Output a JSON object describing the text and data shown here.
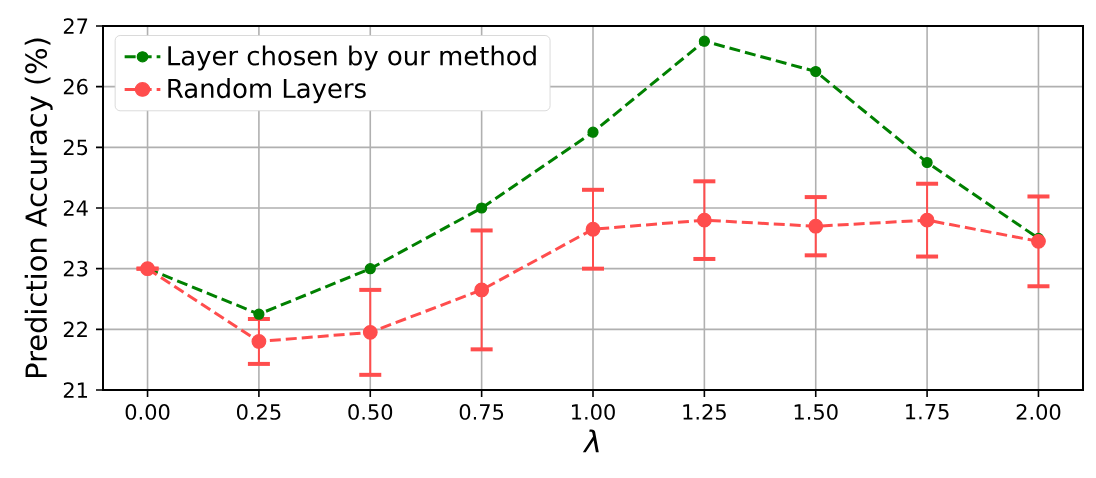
{
  "chart_data": {
    "type": "line",
    "xlabel": "λ",
    "ylabel": "Prediction Accuracy (%)",
    "x": [
      0,
      0.25,
      0.5,
      0.75,
      1.0,
      1.25,
      1.5,
      1.75,
      2.0
    ],
    "xlim": [
      -0.1,
      2.1
    ],
    "xticks": [
      {
        "value": 0,
        "label": "0.00"
      },
      {
        "value": 0.25,
        "label": "0.25"
      },
      {
        "value": 0.5,
        "label": "0.50"
      },
      {
        "value": 0.75,
        "label": "0.75"
      },
      {
        "value": 1.0,
        "label": "1.00"
      },
      {
        "value": 1.25,
        "label": "1.25"
      },
      {
        "value": 1.5,
        "label": "1.50"
      },
      {
        "value": 1.75,
        "label": "1.75"
      },
      {
        "value": 2.0,
        "label": "2.00"
      }
    ],
    "ylim": [
      21,
      27
    ],
    "yticks": [
      21,
      22,
      23,
      24,
      25,
      26,
      27
    ],
    "grid": true,
    "legend": "top left",
    "marker": "circle",
    "line_style": "dashed",
    "series": [
      {
        "name": "Layer chosen by our method",
        "color": "#008000",
        "values": [
          23.0,
          22.25,
          23.0,
          24.0,
          25.25,
          26.75,
          26.25,
          24.75,
          23.5
        ]
      },
      {
        "name": "Random Layers",
        "color": "#ff4d4d",
        "values": [
          23.0,
          21.8,
          21.95,
          22.65,
          23.65,
          23.8,
          23.7,
          23.8,
          23.45
        ],
        "errors": [
          0,
          0.37,
          0.7,
          0.98,
          0.65,
          0.64,
          0.48,
          0.6,
          0.74
        ]
      }
    ]
  }
}
